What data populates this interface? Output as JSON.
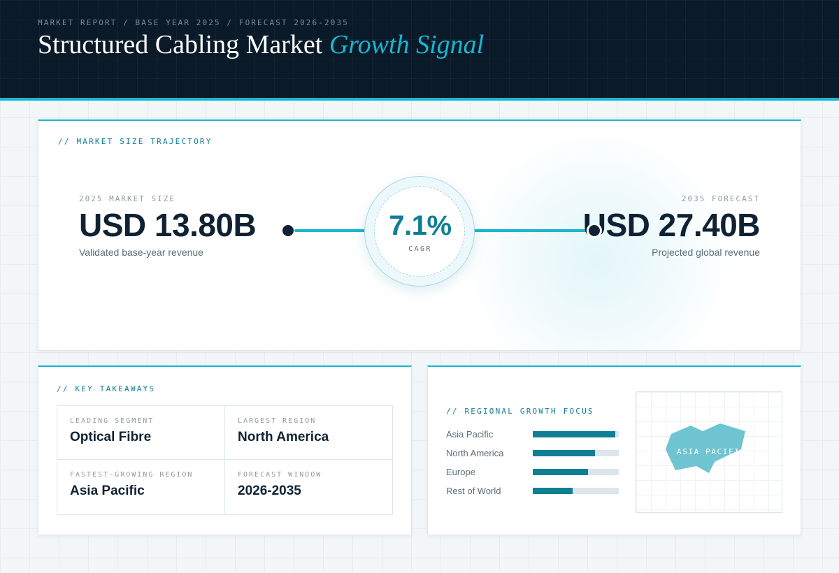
{
  "header": {
    "breadcrumb": "MARKET REPORT / BASE YEAR 2025 / FORECAST 2026-2035",
    "title_main": "Structured Cabling Market",
    "title_accent": "Growth Signal"
  },
  "trajectory": {
    "section_label": "// MARKET SIZE TRAJECTORY",
    "start": {
      "kicker": "2025 MARKET SIZE",
      "value": "USD 13.80B",
      "caption": "Validated base-year revenue"
    },
    "cagr": {
      "value": "7.1%",
      "label": "CAGR"
    },
    "end": {
      "kicker": "2035 FORECAST",
      "value": "USD 27.40B",
      "caption": "Projected global revenue"
    }
  },
  "takeaways": {
    "section_label": "// KEY TAKEAWAYS",
    "items": [
      {
        "label": "LEADING SEGMENT",
        "value": "Optical Fibre"
      },
      {
        "label": "LARGEST REGION",
        "value": "North America"
      },
      {
        "label": "FASTEST-GROWING REGION",
        "value": "Asia Pacific"
      },
      {
        "label": "FORECAST WINDOW",
        "value": "2026-2035"
      }
    ]
  },
  "regional": {
    "section_label": "// REGIONAL GROWTH FOCUS",
    "map_label": "ASIA PACIFIC",
    "colors": {
      "bar_fill": "#0f7f93",
      "bar_track": "#dbe5ea",
      "map_region": "#6ec4d0"
    }
  },
  "chart_data": {
    "type": "bar",
    "orientation": "horizontal",
    "categories": [
      "Asia Pacific",
      "North America",
      "Europe",
      "Rest of World"
    ],
    "values": [
      0.96,
      0.72,
      0.64,
      0.46
    ],
    "xlim": [
      0,
      1
    ],
    "grid": false
  }
}
